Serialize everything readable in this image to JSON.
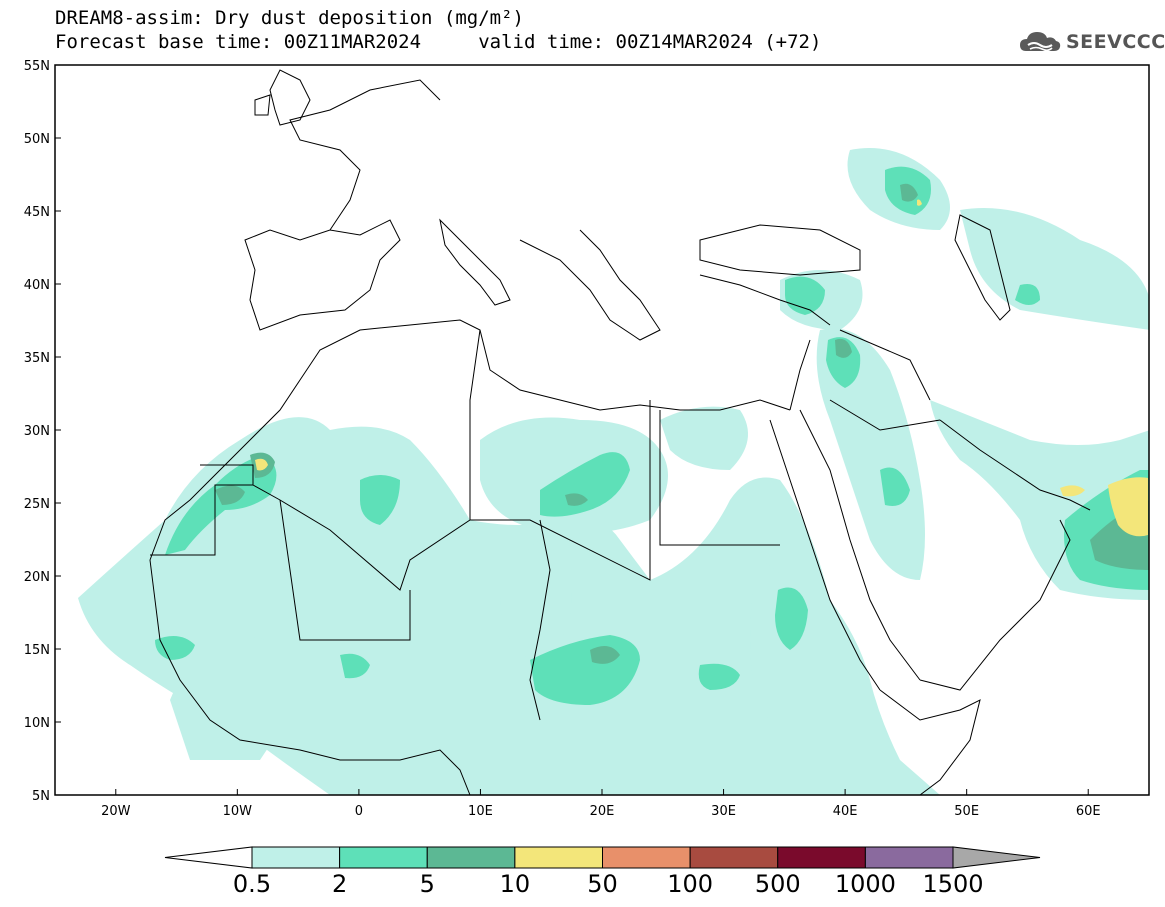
{
  "title": {
    "line1": "DREAM8-assim: Dry dust deposition (mg/m²)",
    "line2": "Forecast base time: 00Z11MAR2024     valid time: 00Z14MAR2024 (+72)"
  },
  "logo": {
    "text": "SEEVCCC",
    "icon": "cloud-icon"
  },
  "map": {
    "lon_range": [
      -25,
      65
    ],
    "lat_range": [
      5,
      55
    ],
    "lat_ticks": [
      {
        "value": 55,
        "label": "55N"
      },
      {
        "value": 50,
        "label": "50N"
      },
      {
        "value": 45,
        "label": "45N"
      },
      {
        "value": 40,
        "label": "40N"
      },
      {
        "value": 35,
        "label": "35N"
      },
      {
        "value": 30,
        "label": "30N"
      },
      {
        "value": 25,
        "label": "25N"
      },
      {
        "value": 20,
        "label": "20N"
      },
      {
        "value": 15,
        "label": "15N"
      },
      {
        "value": 10,
        "label": "10N"
      },
      {
        "value": 5,
        "label": "5N"
      }
    ],
    "lon_ticks": [
      {
        "value": -20,
        "label": "20W"
      },
      {
        "value": -10,
        "label": "10W"
      },
      {
        "value": 0,
        "label": "0"
      },
      {
        "value": 10,
        "label": "10E"
      },
      {
        "value": 20,
        "label": "20E"
      },
      {
        "value": 30,
        "label": "30E"
      },
      {
        "value": 40,
        "label": "40E"
      },
      {
        "value": 50,
        "label": "50E"
      },
      {
        "value": 60,
        "label": "60E"
      }
    ],
    "colors": {
      "level1": "#bff0e8",
      "level2": "#5ee0b8",
      "level3": "#5cb894",
      "level4": "#f3e67a",
      "coast": "#000000"
    }
  },
  "colorbar": {
    "labels": [
      "0.5",
      "2",
      "5",
      "10",
      "50",
      "100",
      "500",
      "1000",
      "1500"
    ],
    "colors": [
      "#bff0e8",
      "#5ee0b8",
      "#5cb894",
      "#f3e67a",
      "#e8906a",
      "#a84b40",
      "#7a0a2c",
      "#8a6a9e"
    ],
    "low_arrow_color": "#ffffff",
    "high_arrow_color": "#a8a8a8"
  }
}
